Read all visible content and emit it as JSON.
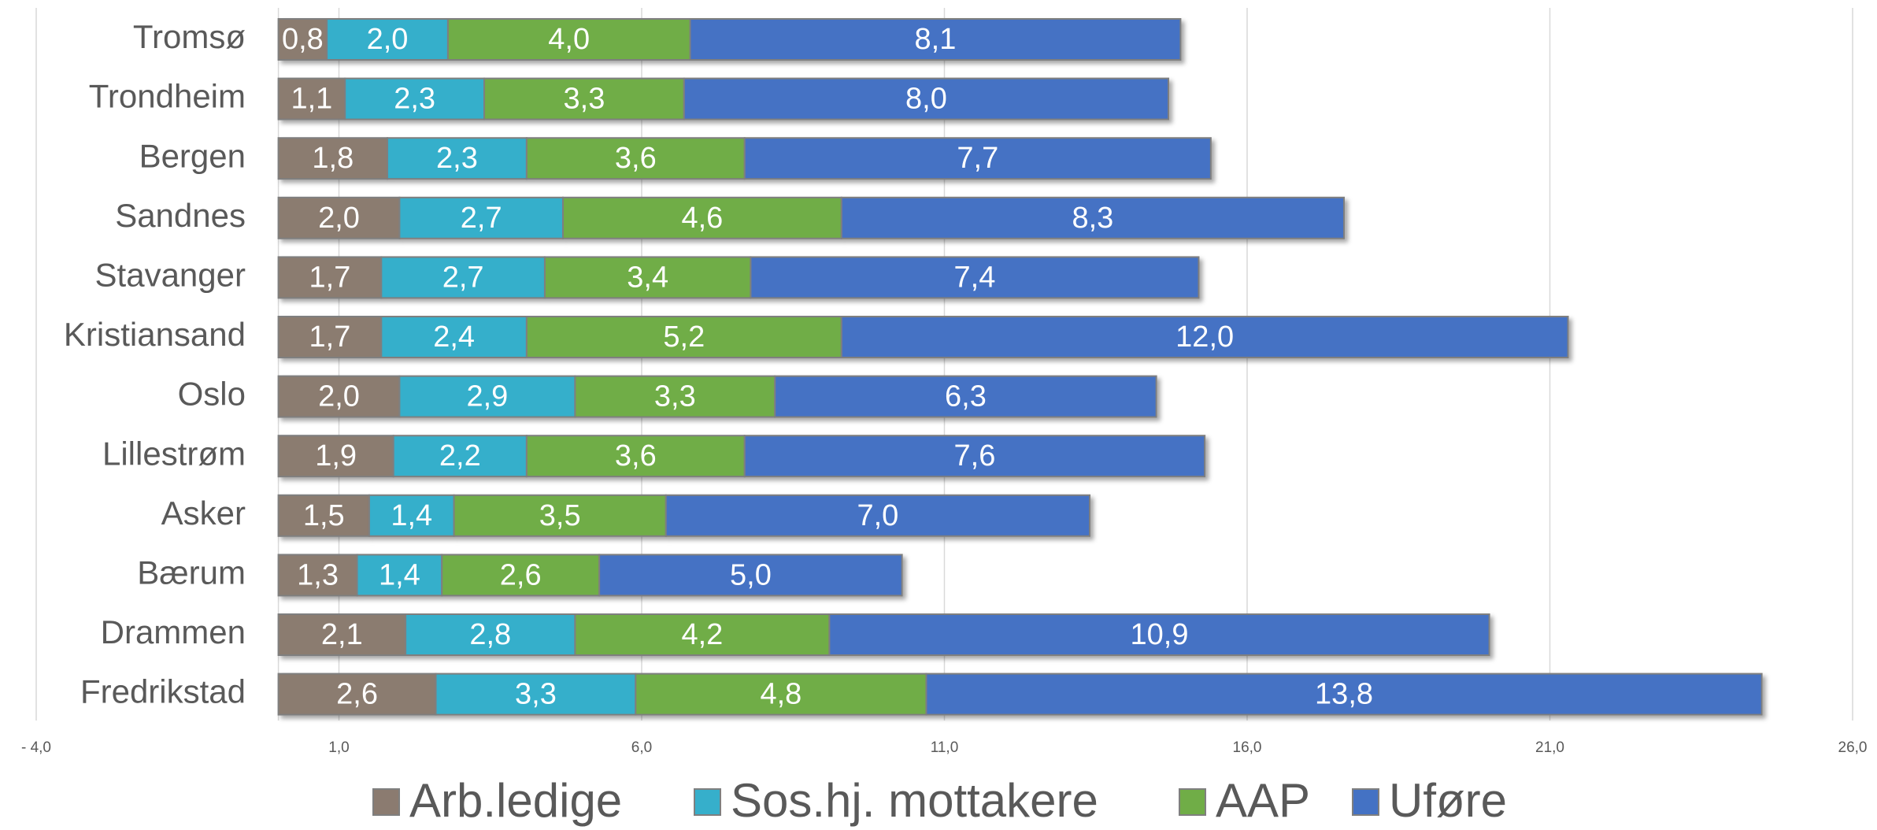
{
  "chart_data": {
    "type": "stacked_barh",
    "categories": [
      "Tromsø",
      "Trondheim",
      "Bergen",
      "Sandnes",
      "Stavanger",
      "Kristiansand",
      "Oslo",
      "Lillestrøm",
      "Asker",
      "Bærum",
      "Drammen",
      "Fredrikstad"
    ],
    "series": [
      {
        "name": "Arb.ledige",
        "color": "#8b7b70",
        "values": [
          0.8,
          1.1,
          1.8,
          2.0,
          1.7,
          1.7,
          2.0,
          1.9,
          1.5,
          1.3,
          2.1,
          2.6
        ],
        "value_labels": [
          "0,8",
          "1,1",
          "1,8",
          "2,0",
          "1,7",
          "1,7",
          "2,0",
          "1,9",
          "1,5",
          "1,3",
          "2,1",
          "2,6"
        ]
      },
      {
        "name": "Sos.hj. mottakere",
        "color": "#36afcb",
        "values": [
          2.0,
          2.3,
          2.3,
          2.7,
          2.7,
          2.4,
          2.9,
          2.2,
          1.4,
          1.4,
          2.8,
          3.3
        ],
        "value_labels": [
          "2,0",
          "2,3",
          "2,3",
          "2,7",
          "2,7",
          "2,4",
          "2,9",
          "2,2",
          "1,4",
          "1,4",
          "2,8",
          "3,3"
        ]
      },
      {
        "name": "AAP",
        "color": "#70ad47",
        "values": [
          4.0,
          3.3,
          3.6,
          4.6,
          3.4,
          5.2,
          3.3,
          3.6,
          3.5,
          2.6,
          4.2,
          4.8
        ],
        "value_labels": [
          "4,0",
          "3,3",
          "3,6",
          "4,6",
          "3,4",
          "5,2",
          "3,3",
          "3,6",
          "3,5",
          "2,6",
          "4,2",
          "4,8"
        ]
      },
      {
        "name": "Uføre",
        "color": "#4472c4",
        "values": [
          8.1,
          8.0,
          7.7,
          8.3,
          7.4,
          12.0,
          6.3,
          7.6,
          7.0,
          5.0,
          10.9,
          13.8
        ],
        "value_labels": [
          "8,1",
          "8,0",
          "7,7",
          "8,3",
          "7,4",
          "12,0",
          "6,3",
          "7,6",
          "7,0",
          "5,0",
          "10,9",
          "13,8"
        ]
      }
    ],
    "xlim": [
      -4,
      26
    ],
    "xticks": [
      {
        "value": -4,
        "label": "- 4,0"
      },
      {
        "value": 1,
        "label": "1,0"
      },
      {
        "value": 6,
        "label": "6,0"
      },
      {
        "value": 11,
        "label": "11,0"
      },
      {
        "value": 16,
        "label": "16,0"
      },
      {
        "value": 21,
        "label": "21,0"
      },
      {
        "value": 26,
        "label": "26,0"
      }
    ],
    "grid": true,
    "legend": "bottom"
  }
}
